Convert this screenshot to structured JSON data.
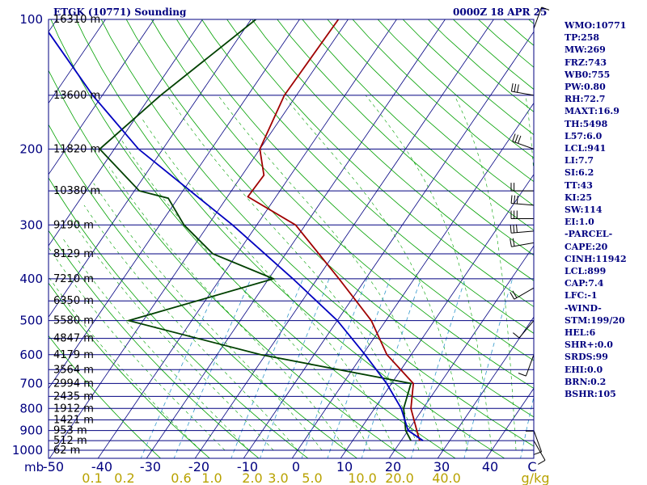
{
  "header": {
    "title_left": "ETGK (10771) Sounding",
    "title_right": "0000Z 18 APR 25"
  },
  "indices": [
    "WMO:10771",
    "TP:258",
    "MW:269",
    "FRZ:743",
    "WB0:755",
    "PW:0.80",
    "RH:72.7",
    "MAXT:16.9",
    "TH:5498",
    "L57:6.0",
    "LCL:941",
    "LI:7.7",
    "SI:6.2",
    "TT:43",
    "KI:25",
    "SW:114",
    "EI:1.0",
    "-PARCEL-",
    "CAPE:20",
    "CINH:11942",
    "LCL:899",
    "CAP:7.4",
    "LFC:-1",
    "-WIND-",
    "STM:199/20",
    "HEL:6",
    "SHR+:0.0",
    "SRDS:99",
    "EHI:0.0",
    "BRN:0.2",
    "BSHR:105"
  ],
  "colors": {
    "isobar": "#000080",
    "dry_adiabat": "#00a000",
    "moist_adiabat": "#00a000",
    "mixing_ratio": "#3399cc",
    "temperature": "#a00000",
    "dewpoint": "#004000",
    "parcel": "#0000c0",
    "mixing_label": "#b8a200",
    "wind": "#000000"
  },
  "chart_data": {
    "type": "line",
    "title": "ETGK (10771) Sounding",
    "subtitle": "0000Z 18 APR 25",
    "xlabel": "C",
    "ylabel": "mb",
    "x_ticks": [
      -50,
      -40,
      -30,
      -20,
      -10,
      0,
      10,
      20,
      30,
      40
    ],
    "x_tick_labels": [
      "-50",
      "-40",
      "-30",
      "-20",
      "-10",
      "0",
      "10",
      "20",
      "30",
      "40"
    ],
    "x_unit_label": "C",
    "y_ticks": [
      100,
      200,
      300,
      400,
      500,
      600,
      700,
      800,
      900,
      1000
    ],
    "y_tick_labels": [
      "100",
      "200",
      "300",
      "400",
      "500",
      "600",
      "700",
      "800",
      "900",
      "1000"
    ],
    "y_unit_label": "mb",
    "y_scale": "log",
    "heights": [
      {
        "p": 100,
        "label": "16310 m"
      },
      {
        "p": 150,
        "label": "13600 m"
      },
      {
        "p": 200,
        "label": "11820 m"
      },
      {
        "p": 250,
        "label": "10380 m"
      },
      {
        "p": 300,
        "label": "9190 m"
      },
      {
        "p": 350,
        "label": "8129 m"
      },
      {
        "p": 400,
        "label": "7210 m"
      },
      {
        "p": 450,
        "label": "6350 m"
      },
      {
        "p": 500,
        "label": "5580 m"
      },
      {
        "p": 550,
        "label": "4847 m"
      },
      {
        "p": 600,
        "label": "4179 m"
      },
      {
        "p": 650,
        "label": "3564 m"
      },
      {
        "p": 700,
        "label": "2994 m"
      },
      {
        "p": 750,
        "label": "2435 m"
      },
      {
        "p": 800,
        "label": "1912 m"
      },
      {
        "p": 850,
        "label": "1421 m"
      },
      {
        "p": 900,
        "label": "953 m"
      },
      {
        "p": 950,
        "label": "512 m"
      },
      {
        "p": 1000,
        "label": "62 m"
      }
    ],
    "mixing_ratio_labels": [
      "0.1",
      "0.2",
      "0.6",
      "1.0",
      "2.0",
      "3.0",
      "5.0",
      "10.0",
      "20.0",
      "40.0",
      "g/kg"
    ],
    "series": [
      {
        "key": "temperature",
        "points": [
          {
            "p": 100,
            "t": -62
          },
          {
            "p": 150,
            "t": -62.5
          },
          {
            "p": 200,
            "t": -60
          },
          {
            "p": 230,
            "t": -55.5
          },
          {
            "p": 258,
            "t": -55.8
          },
          {
            "p": 300,
            "t": -42
          },
          {
            "p": 400,
            "t": -25.5
          },
          {
            "p": 500,
            "t": -13
          },
          {
            "p": 600,
            "t": -5
          },
          {
            "p": 700,
            "t": 4.5
          },
          {
            "p": 800,
            "t": 7.5
          },
          {
            "p": 900,
            "t": 11.8
          },
          {
            "p": 950,
            "t": 13.8
          }
        ]
      },
      {
        "key": "dewpoint",
        "points": [
          {
            "p": 100,
            "t": -79
          },
          {
            "p": 150,
            "t": -88
          },
          {
            "p": 200,
            "t": -93
          },
          {
            "p": 250,
            "t": -79
          },
          {
            "p": 260,
            "t": -72
          },
          {
            "p": 300,
            "t": -65
          },
          {
            "p": 350,
            "t": -55
          },
          {
            "p": 400,
            "t": -39
          },
          {
            "p": 500,
            "t": -63
          },
          {
            "p": 600,
            "t": -31
          },
          {
            "p": 700,
            "t": 4
          },
          {
            "p": 800,
            "t": 6
          },
          {
            "p": 900,
            "t": 9.5
          },
          {
            "p": 950,
            "t": 12
          }
        ]
      },
      {
        "key": "parcel",
        "points": [
          {
            "p": 950,
            "t": 14.5
          },
          {
            "p": 900,
            "t": 10
          },
          {
            "p": 800,
            "t": 5.5
          },
          {
            "p": 700,
            "t": -1
          },
          {
            "p": 600,
            "t": -9.5
          },
          {
            "p": 500,
            "t": -20
          },
          {
            "p": 400,
            "t": -35
          },
          {
            "p": 300,
            "t": -55
          },
          {
            "p": 200,
            "t": -85
          },
          {
            "p": 150,
            "t": -102
          },
          {
            "p": 105,
            "t": -121
          }
        ]
      }
    ],
    "wind_barbs": [
      {
        "p": 105,
        "dir": 20,
        "spd": 10
      },
      {
        "p": 150,
        "dir": 280,
        "spd": 30
      },
      {
        "p": 200,
        "dir": 290,
        "spd": 25
      },
      {
        "p": 250,
        "dir": 270,
        "spd": 20
      },
      {
        "p": 270,
        "dir": 275,
        "spd": 25
      },
      {
        "p": 290,
        "dir": 270,
        "spd": 30
      },
      {
        "p": 310,
        "dir": 265,
        "spd": 25
      },
      {
        "p": 330,
        "dir": 260,
        "spd": 20
      },
      {
        "p": 420,
        "dir": 240,
        "spd": 15
      },
      {
        "p": 500,
        "dir": 220,
        "spd": 10
      },
      {
        "p": 600,
        "dir": 200,
        "spd": 10
      },
      {
        "p": 800,
        "dir": 180,
        "spd": 10
      },
      {
        "p": 900,
        "dir": 160,
        "spd": 10
      },
      {
        "p": 950,
        "dir": 150,
        "spd": 10
      }
    ]
  }
}
